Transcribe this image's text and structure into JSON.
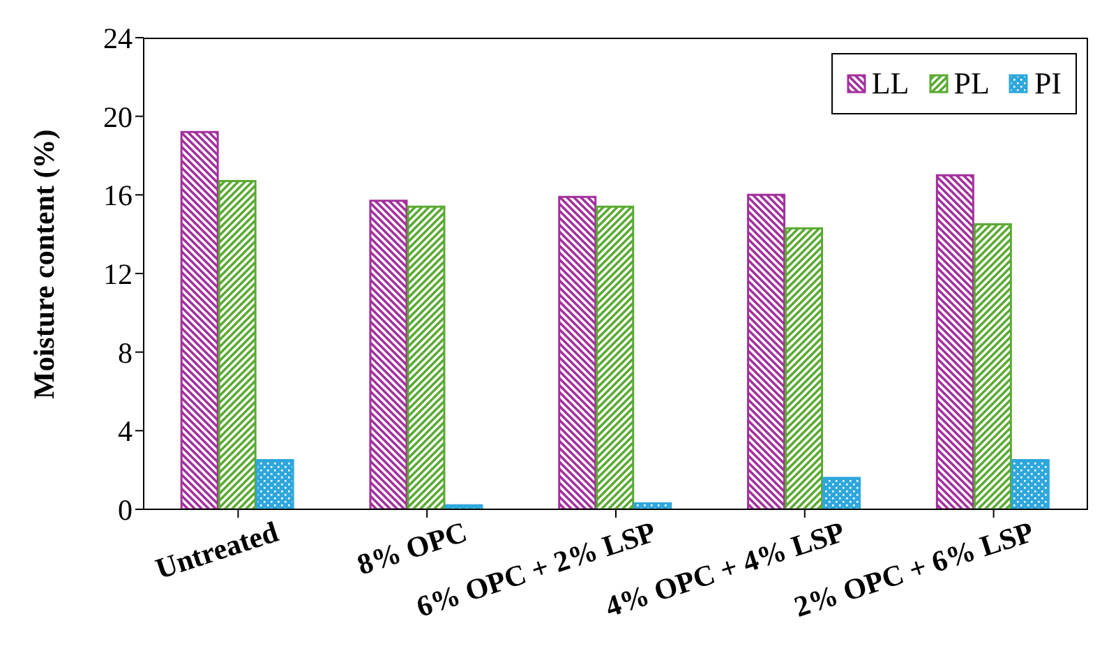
{
  "chart_data": {
    "type": "bar",
    "ylabel": "Moisture content (%)",
    "categories": [
      "Untreated",
      "8% OPC",
      "6% OPC + 2% LSP",
      "4% OPC + 4% LSP",
      "2% OPC + 6% LSP"
    ],
    "series": [
      {
        "name": "LL",
        "color": "#a3309c",
        "values": [
          19.2,
          15.7,
          15.9,
          16.0,
          17.0
        ]
      },
      {
        "name": "PL",
        "color": "#5aaa32",
        "values": [
          16.7,
          15.4,
          15.4,
          14.3,
          14.5
        ]
      },
      {
        "name": "PI",
        "color": "#2ea7dc",
        "values": [
          2.5,
          0.2,
          0.3,
          1.6,
          2.5
        ]
      }
    ],
    "ylim": [
      0,
      24
    ],
    "yticks": [
      0,
      4,
      8,
      12,
      16,
      20,
      24
    ],
    "legend": "top right"
  }
}
